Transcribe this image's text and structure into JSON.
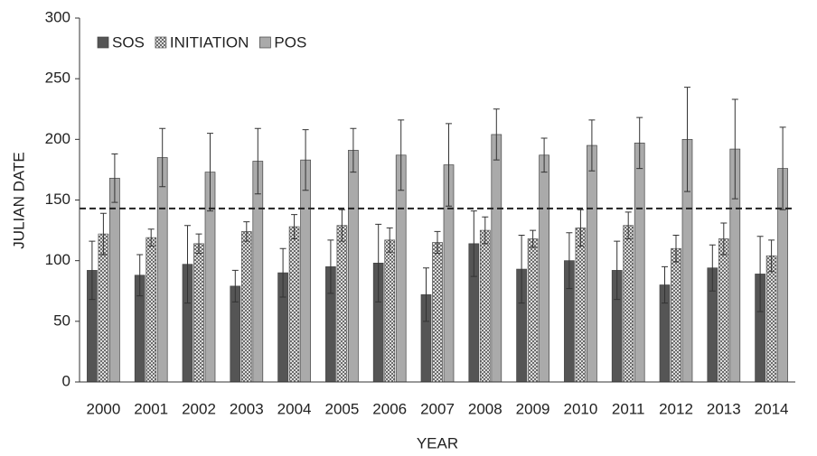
{
  "chart_data": {
    "type": "bar",
    "xlabel": "YEAR",
    "ylabel": "JULIAN DATE",
    "categories": [
      "2000",
      "2001",
      "2002",
      "2003",
      "2004",
      "2005",
      "2006",
      "2007",
      "2008",
      "2009",
      "2010",
      "2011",
      "2012",
      "2013",
      "2014"
    ],
    "series": [
      {
        "name": "SOS",
        "color": "#555555",
        "hatch": false,
        "values": [
          92,
          88,
          97,
          79,
          90,
          95,
          98,
          72,
          114,
          93,
          100,
          92,
          80,
          94,
          89
        ],
        "errors": [
          24,
          17,
          32,
          13,
          20,
          22,
          32,
          22,
          27,
          28,
          23,
          24,
          15,
          19,
          31
        ]
      },
      {
        "name": "INITIATION",
        "color": "#555555",
        "hatch": true,
        "values": [
          122,
          119,
          114,
          124,
          128,
          129,
          117,
          115,
          125,
          118,
          127,
          129,
          110,
          118,
          104
        ],
        "errors": [
          17,
          7,
          8,
          8,
          10,
          13,
          10,
          9,
          11,
          7,
          15,
          11,
          11,
          13,
          13
        ]
      },
      {
        "name": "POS",
        "color": "#aaaaaa",
        "hatch": false,
        "values": [
          168,
          185,
          173,
          182,
          183,
          191,
          187,
          179,
          204,
          187,
          195,
          197,
          200,
          192,
          176
        ],
        "errors": [
          20,
          24,
          32,
          27,
          25,
          18,
          29,
          34,
          21,
          14,
          21,
          21,
          43,
          41,
          34
        ]
      }
    ],
    "reference_line": 143,
    "ylim": [
      0,
      300
    ],
    "yticks": [
      0,
      50,
      100,
      150,
      200,
      250,
      300
    ],
    "legend": "upper left",
    "grid": false
  }
}
